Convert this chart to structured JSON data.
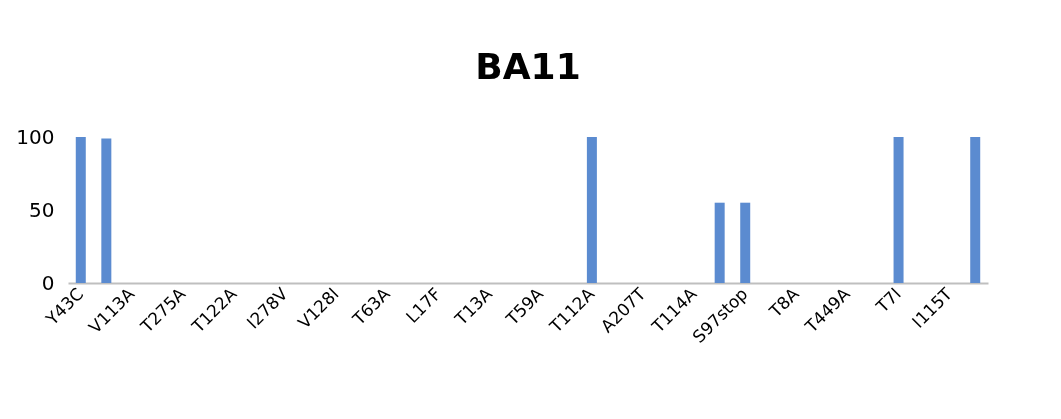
{
  "chart_data": {
    "type": "bar",
    "title": "BA11",
    "categories": [
      "Y43C",
      null,
      "V113A",
      null,
      "T275A",
      null,
      "T122A",
      null,
      "I278V",
      null,
      "V128I",
      null,
      "T63A",
      null,
      "L17F",
      null,
      "T13A",
      null,
      "T59A",
      null,
      "T112A",
      null,
      "A207T",
      null,
      "T114A",
      null,
      "S97stop",
      null,
      "T8A",
      null,
      "T449A",
      null,
      "T7I",
      null,
      "I115T",
      null
    ],
    "values": [
      100,
      99,
      0,
      0,
      0,
      0,
      0,
      0,
      0,
      0,
      0,
      0,
      0,
      0,
      0,
      0,
      0,
      0,
      0,
      0,
      100,
      0,
      0,
      0,
      0,
      55,
      55,
      0,
      0,
      0,
      0,
      0,
      100,
      0,
      0,
      100
    ],
    "color": "#5b8bd0",
    "ylim": [
      0,
      100
    ],
    "yticks": [
      0,
      50,
      100
    ],
    "grid": false
  }
}
